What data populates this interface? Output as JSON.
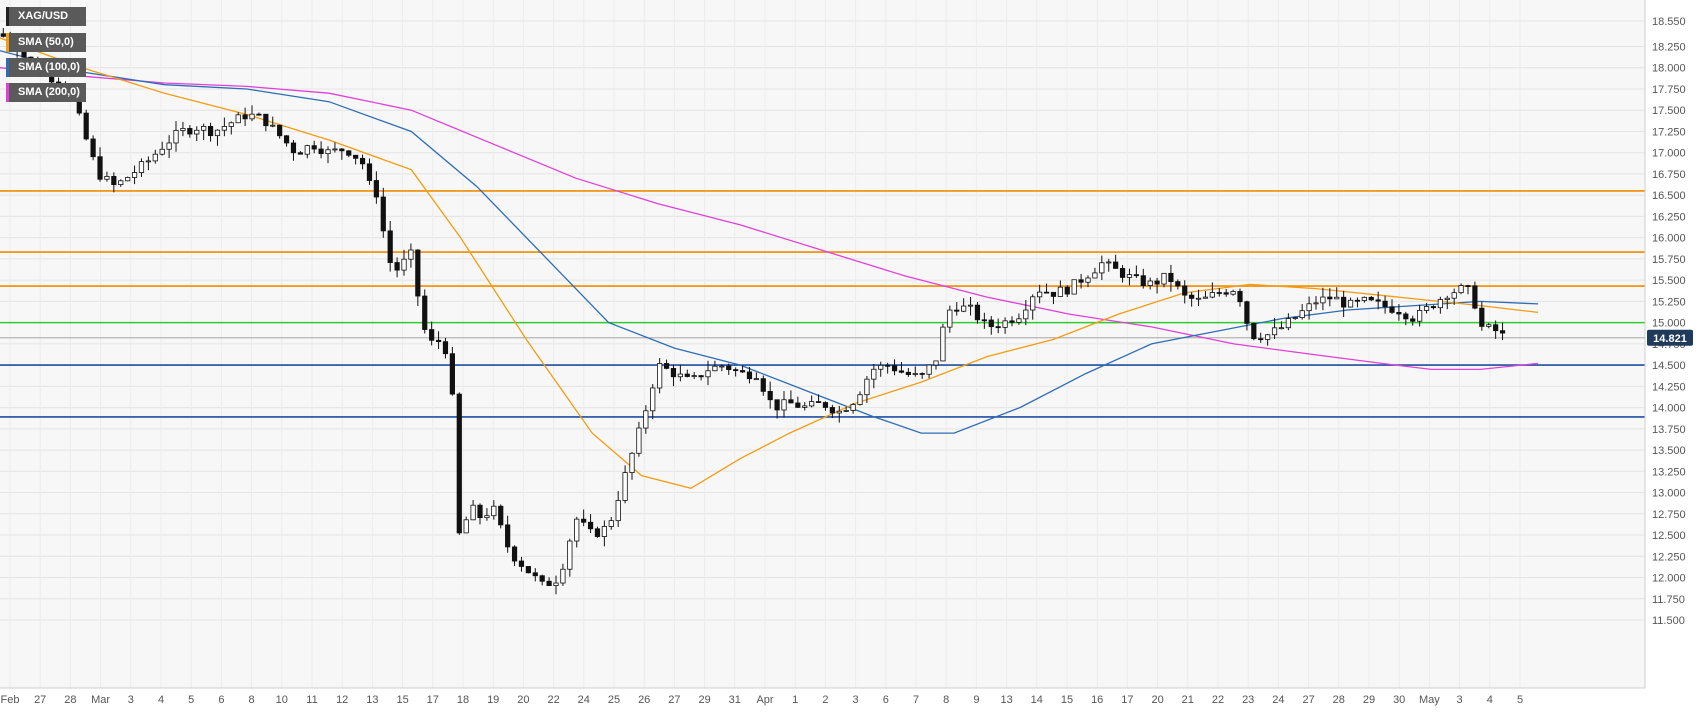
{
  "chart_data": {
    "type": "candlestick",
    "symbol": "XAG/USD",
    "ylim": [
      11.5,
      18.6
    ],
    "yticks": [
      "18.550",
      "18.250",
      "18.000",
      "17.750",
      "17.500",
      "17.250",
      "17.000",
      "16.750",
      "16.500",
      "16.250",
      "16.000",
      "15.750",
      "15.500",
      "15.250",
      "15.000",
      "14.750",
      "14.500",
      "14.250",
      "14.000",
      "13.750",
      "13.500",
      "13.250",
      "13.000",
      "12.750",
      "12.500",
      "12.250",
      "12.000",
      "11.750",
      "11.500"
    ],
    "xticks": [
      "Feb",
      "27",
      "28",
      "Mar",
      "3",
      "4",
      "5",
      "6",
      "8",
      "10",
      "11",
      "12",
      "13",
      "15",
      "17",
      "18",
      "19",
      "20",
      "22",
      "24",
      "25",
      "26",
      "27",
      "29",
      "31",
      "Apr",
      "1",
      "2",
      "3",
      "6",
      "7",
      "8",
      "9",
      "13",
      "14",
      "15",
      "16",
      "17",
      "20",
      "21",
      "22",
      "23",
      "24",
      "27",
      "28",
      "29",
      "30",
      "May",
      "3",
      "4",
      "5"
    ],
    "last_price": "14.821",
    "legend": [
      {
        "label": "XAG/USD",
        "color": "#222222"
      },
      {
        "label": "SMA (50,0)",
        "color": "#f39c12"
      },
      {
        "label": "SMA (100,0)",
        "color": "#2e6db4"
      },
      {
        "label": "SMA (200,0)",
        "color": "#e040d8"
      }
    ],
    "horizontal_levels": [
      {
        "value": 16.55,
        "color": "#f08c00"
      },
      {
        "value": 15.83,
        "color": "#f08c00"
      },
      {
        "value": 15.43,
        "color": "#f08c00"
      },
      {
        "value": 15.0,
        "color": "#2ecc2e"
      },
      {
        "value": 14.5,
        "color": "#1f4fa0"
      },
      {
        "value": 13.89,
        "color": "#1f4fa0"
      }
    ],
    "price_path": [
      [
        0.0,
        18.4
      ],
      [
        0.01,
        18.25
      ],
      [
        0.02,
        18.0
      ],
      [
        0.035,
        17.85
      ],
      [
        0.045,
        17.6
      ],
      [
        0.055,
        17.0
      ],
      [
        0.06,
        16.75
      ],
      [
        0.07,
        16.6
      ],
      [
        0.08,
        16.75
      ],
      [
        0.09,
        16.9
      ],
      [
        0.1,
        17.1
      ],
      [
        0.11,
        17.25
      ],
      [
        0.12,
        17.3
      ],
      [
        0.13,
        17.25
      ],
      [
        0.14,
        17.35
      ],
      [
        0.15,
        17.45
      ],
      [
        0.16,
        17.4
      ],
      [
        0.17,
        17.2
      ],
      [
        0.18,
        17.0
      ],
      [
        0.19,
        17.1
      ],
      [
        0.2,
        17.0
      ],
      [
        0.21,
        17.05
      ],
      [
        0.22,
        16.9
      ],
      [
        0.225,
        16.6
      ],
      [
        0.23,
        16.5
      ],
      [
        0.235,
        15.8
      ],
      [
        0.24,
        15.6
      ],
      [
        0.25,
        15.8
      ],
      [
        0.255,
        15.2
      ],
      [
        0.26,
        14.75
      ],
      [
        0.27,
        14.8
      ],
      [
        0.275,
        14.1
      ],
      [
        0.28,
        12.2
      ],
      [
        0.285,
        12.9
      ],
      [
        0.29,
        12.7
      ],
      [
        0.3,
        12.8
      ],
      [
        0.31,
        12.3
      ],
      [
        0.32,
        12.1
      ],
      [
        0.33,
        11.9
      ],
      [
        0.34,
        12.0
      ],
      [
        0.35,
        12.7
      ],
      [
        0.36,
        12.5
      ],
      [
        0.37,
        12.6
      ],
      [
        0.38,
        13.2
      ],
      [
        0.39,
        13.8
      ],
      [
        0.4,
        14.5
      ],
      [
        0.41,
        14.4
      ],
      [
        0.42,
        14.3
      ],
      [
        0.43,
        14.45
      ],
      [
        0.44,
        14.5
      ],
      [
        0.45,
        14.4
      ],
      [
        0.46,
        14.4
      ],
      [
        0.47,
        14.0
      ],
      [
        0.48,
        14.05
      ],
      [
        0.49,
        14.0
      ],
      [
        0.5,
        14.05
      ],
      [
        0.51,
        13.95
      ],
      [
        0.52,
        14.1
      ],
      [
        0.53,
        14.45
      ],
      [
        0.54,
        14.5
      ],
      [
        0.55,
        14.4
      ],
      [
        0.56,
        14.35
      ],
      [
        0.57,
        14.6
      ],
      [
        0.575,
        15.1
      ],
      [
        0.58,
        15.2
      ],
      [
        0.59,
        15.15
      ],
      [
        0.6,
        14.95
      ],
      [
        0.61,
        15.0
      ],
      [
        0.62,
        15.1
      ],
      [
        0.63,
        15.4
      ],
      [
        0.64,
        15.35
      ],
      [
        0.65,
        15.4
      ],
      [
        0.66,
        15.55
      ],
      [
        0.67,
        15.7
      ],
      [
        0.68,
        15.6
      ],
      [
        0.69,
        15.5
      ],
      [
        0.7,
        15.45
      ],
      [
        0.71,
        15.55
      ],
      [
        0.72,
        15.3
      ],
      [
        0.73,
        15.25
      ],
      [
        0.74,
        15.35
      ],
      [
        0.75,
        15.4
      ],
      [
        0.755,
        15.25
      ],
      [
        0.76,
        14.85
      ],
      [
        0.77,
        14.85
      ],
      [
        0.78,
        14.95
      ],
      [
        0.79,
        15.1
      ],
      [
        0.8,
        15.25
      ],
      [
        0.81,
        15.3
      ],
      [
        0.82,
        15.2
      ],
      [
        0.83,
        15.25
      ],
      [
        0.84,
        15.2
      ],
      [
        0.85,
        15.15
      ],
      [
        0.86,
        15.05
      ],
      [
        0.87,
        15.2
      ],
      [
        0.88,
        15.35
      ],
      [
        0.89,
        15.4
      ],
      [
        0.895,
        15.35
      ],
      [
        0.9,
        14.95
      ],
      [
        0.91,
        14.9
      ],
      [
        0.915,
        14.82
      ]
    ],
    "sma50": [
      [
        0.0,
        18.35
      ],
      [
        0.05,
        18.0
      ],
      [
        0.1,
        17.7
      ],
      [
        0.15,
        17.45
      ],
      [
        0.2,
        17.15
      ],
      [
        0.25,
        16.8
      ],
      [
        0.28,
        16.0
      ],
      [
        0.32,
        14.8
      ],
      [
        0.36,
        13.7
      ],
      [
        0.39,
        13.2
      ],
      [
        0.42,
        13.05
      ],
      [
        0.45,
        13.4
      ],
      [
        0.48,
        13.7
      ],
      [
        0.52,
        14.05
      ],
      [
        0.56,
        14.3
      ],
      [
        0.6,
        14.6
      ],
      [
        0.64,
        14.8
      ],
      [
        0.68,
        15.1
      ],
      [
        0.72,
        15.35
      ],
      [
        0.76,
        15.45
      ],
      [
        0.8,
        15.4
      ],
      [
        0.85,
        15.3
      ],
      [
        0.9,
        15.2
      ],
      [
        0.935,
        15.12
      ]
    ],
    "sma100": [
      [
        0.0,
        18.2
      ],
      [
        0.05,
        17.95
      ],
      [
        0.1,
        17.8
      ],
      [
        0.15,
        17.75
      ],
      [
        0.2,
        17.6
      ],
      [
        0.25,
        17.25
      ],
      [
        0.29,
        16.6
      ],
      [
        0.33,
        15.8
      ],
      [
        0.37,
        15.0
      ],
      [
        0.41,
        14.7
      ],
      [
        0.45,
        14.5
      ],
      [
        0.49,
        14.2
      ],
      [
        0.53,
        13.9
      ],
      [
        0.56,
        13.7
      ],
      [
        0.58,
        13.7
      ],
      [
        0.62,
        14.0
      ],
      [
        0.66,
        14.4
      ],
      [
        0.7,
        14.75
      ],
      [
        0.74,
        14.9
      ],
      [
        0.78,
        15.05
      ],
      [
        0.82,
        15.15
      ],
      [
        0.86,
        15.2
      ],
      [
        0.9,
        15.25
      ],
      [
        0.935,
        15.22
      ]
    ],
    "sma200": [
      [
        0.0,
        18.0
      ],
      [
        0.05,
        17.9
      ],
      [
        0.1,
        17.82
      ],
      [
        0.15,
        17.78
      ],
      [
        0.2,
        17.7
      ],
      [
        0.25,
        17.5
      ],
      [
        0.3,
        17.1
      ],
      [
        0.35,
        16.7
      ],
      [
        0.4,
        16.4
      ],
      [
        0.45,
        16.15
      ],
      [
        0.5,
        15.85
      ],
      [
        0.55,
        15.55
      ],
      [
        0.6,
        15.3
      ],
      [
        0.65,
        15.1
      ],
      [
        0.7,
        14.95
      ],
      [
        0.75,
        14.75
      ],
      [
        0.8,
        14.62
      ],
      [
        0.84,
        14.52
      ],
      [
        0.87,
        14.45
      ],
      [
        0.9,
        14.45
      ],
      [
        0.935,
        14.52
      ]
    ]
  }
}
